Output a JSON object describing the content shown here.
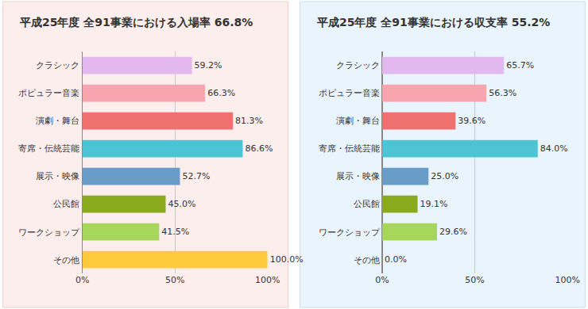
{
  "chart_data": [
    {
      "type": "bar",
      "title": "平成25年度 全91事業における入場率 66.8%",
      "orientation": "horizontal",
      "categories": [
        "クラシック",
        "ポピュラー音楽",
        "演劇・舞台",
        "寄席・伝統芸能",
        "展示・映像",
        "公民館",
        "ワークショップ",
        "その他"
      ],
      "values": [
        59.2,
        66.3,
        81.3,
        86.6,
        52.7,
        45.0,
        41.5,
        100.0
      ],
      "value_labels": [
        "59.2%",
        "66.3%",
        "81.3%",
        "86.6%",
        "52.7%",
        "45.0%",
        "41.5%",
        "100.0%"
      ],
      "colors": [
        "#e3b8ef",
        "#f9a5b0",
        "#f07070",
        "#4cc4d4",
        "#6a9cc8",
        "#8aaa1e",
        "#a6d65a",
        "#ffc93c"
      ],
      "xlim": [
        0,
        100
      ],
      "xticks": [
        {
          "value": 0,
          "label": "0%"
        },
        {
          "value": 50,
          "label": "50%"
        },
        {
          "value": 100,
          "label": "100%"
        }
      ],
      "grid": true,
      "data_labels": true
    },
    {
      "type": "bar",
      "title": "平成25年度 全91事業における収支率 55.2%",
      "orientation": "horizontal",
      "categories": [
        "クラシック",
        "ポピュラー音楽",
        "演劇・舞台",
        "寄席・伝統芸能",
        "展示・映像",
        "公民館",
        "ワークショップ",
        "その他"
      ],
      "values": [
        65.7,
        56.3,
        39.6,
        84.0,
        25.0,
        19.1,
        29.6,
        0.0
      ],
      "value_labels": [
        "65.7%",
        "56.3%",
        "39.6%",
        "84.0%",
        "25.0%",
        "19.1%",
        "29.6%",
        "0.0%"
      ],
      "colors": [
        "#e3b8ef",
        "#f9a5b0",
        "#f07070",
        "#4cc4d4",
        "#6a9cc8",
        "#8aaa1e",
        "#a6d65a",
        "#ffc93c"
      ],
      "xlim": [
        0,
        100
      ],
      "xticks": [
        {
          "value": 0,
          "label": "0%"
        },
        {
          "value": 50,
          "label": "50%"
        },
        {
          "value": 100,
          "label": "100%"
        }
      ],
      "grid": true,
      "data_labels": true
    }
  ]
}
